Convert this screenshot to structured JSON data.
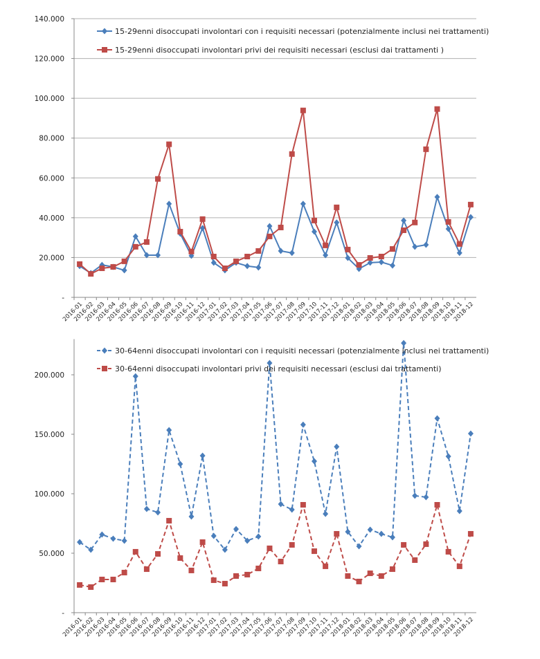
{
  "chart_data": [
    {
      "type": "line",
      "title": "",
      "xlabel": "",
      "ylabel": "",
      "ylim": [
        0,
        140000
      ],
      "yticks": [
        0,
        20000,
        40000,
        60000,
        80000,
        100000,
        120000,
        140000
      ],
      "ytick_labels": [
        "-",
        "20.000",
        "40.000",
        "60.000",
        "80.000",
        "100.000",
        "120.000",
        "140.000"
      ],
      "grid": true,
      "legend_position": "top",
      "categories": [
        "2016-01",
        "2016-02",
        "2016-03",
        "2016-04",
        "2016-05",
        "2016-06",
        "2016-07",
        "2016-08",
        "2016-09",
        "2016-10",
        "2016-11",
        "2016-12",
        "2017-01",
        "2017-02",
        "2017-03",
        "2017-04",
        "2017-05",
        "2017-06",
        "2017-07",
        "2017-08",
        "2017-09",
        "2017-10",
        "2017-11",
        "2017-12",
        "2018-01",
        "2018-02",
        "2018-03",
        "2018-04",
        "2018-05",
        "2018-06",
        "2018-07",
        "2018-08",
        "2018-09",
        "2018-10",
        "2018-11",
        "2018-12"
      ],
      "series": [
        {
          "name": "15-29enni disoccupati involontari con i requisiti necessari (potenzialmente inclusi nei trattamenti)",
          "color": "#4a7ebb",
          "marker": "diamond",
          "dash": false,
          "values": [
            15700,
            12200,
            16300,
            15300,
            13600,
            30600,
            21200,
            21200,
            47000,
            32000,
            20900,
            34800,
            17400,
            13600,
            17400,
            15700,
            15000,
            35800,
            23300,
            22300,
            47000,
            33000,
            21200,
            37600,
            19800,
            14300,
            17400,
            17700,
            16000,
            38600,
            25400,
            26400,
            50400,
            34400,
            22300,
            40300
          ]
        },
        {
          "name": "15-29enni disoccupati involontari privi dei requisiti necessari (esclusi dai trattamenti )",
          "color": "#be4b48",
          "marker": "square",
          "dash": false,
          "values": [
            16700,
            11800,
            14600,
            15300,
            18100,
            25400,
            27800,
            59500,
            76900,
            33000,
            23000,
            39300,
            20500,
            14600,
            18100,
            20500,
            23300,
            30600,
            35100,
            72000,
            93900,
            38600,
            26100,
            45200,
            24000,
            16300,
            19800,
            20500,
            24300,
            33700,
            37600,
            74400,
            94600,
            37900,
            26800,
            46600
          ]
        }
      ]
    },
    {
      "type": "line",
      "title": "",
      "xlabel": "",
      "ylabel": "",
      "ylim": [
        0,
        230000
      ],
      "yticks": [
        0,
        50000,
        100000,
        150000,
        200000
      ],
      "ytick_labels": [
        "-",
        "50.000",
        "100.000",
        "150.000",
        "200.000"
      ],
      "grid": false,
      "legend_position": "top",
      "categories": [
        "2016-01",
        "2016-02",
        "2016-03",
        "2016-04",
        "2016-05",
        "2016-06",
        "2016-07",
        "2016-08",
        "2016-09",
        "2016-10",
        "2016-11",
        "2016-12",
        "2017-01",
        "2017-02",
        "2017-03",
        "2017-04",
        "2017-05",
        "2017-06",
        "2017-07",
        "2017-08",
        "2017-09",
        "2017-10",
        "2017-11",
        "2017-12",
        "2018-01",
        "2018-02",
        "2018-03",
        "2018-04",
        "2018-05",
        "2018-06",
        "2018-07",
        "2018-08",
        "2018-09",
        "2018-10",
        "2018-11",
        "2018-12"
      ],
      "series": [
        {
          "name": "30-64enni disoccupati involontari con i requisiti necessari  (potenzialmente inclusi nei trattamenti)",
          "color": "#4a7ebb",
          "marker": "diamond",
          "dash": true,
          "values": [
            59300,
            52900,
            65700,
            62200,
            60500,
            198800,
            87200,
            84300,
            153500,
            125000,
            80800,
            132000,
            64500,
            52900,
            70300,
            60500,
            64000,
            209900,
            91300,
            86600,
            158100,
            127300,
            83100,
            139500,
            68000,
            55800,
            69800,
            66300,
            63400,
            226700,
            98300,
            97100,
            163400,
            131400,
            85500,
            150600
          ]
        },
        {
          "name": "30-64enni disoccupati involontari privi dei requisiti necessari (esclusi dai trattamenti)",
          "color": "#be4b48",
          "marker": "square",
          "dash": true,
          "values": [
            23300,
            21500,
            27900,
            27900,
            33700,
            51200,
            36600,
            49400,
            77300,
            45900,
            35500,
            59300,
            27300,
            24400,
            30800,
            32000,
            37200,
            54100,
            43000,
            57000,
            90700,
            51700,
            39000,
            66300,
            30800,
            26200,
            33100,
            30800,
            36600,
            57000,
            44200,
            57600,
            90700,
            51200,
            39000,
            66300
          ]
        }
      ]
    }
  ]
}
